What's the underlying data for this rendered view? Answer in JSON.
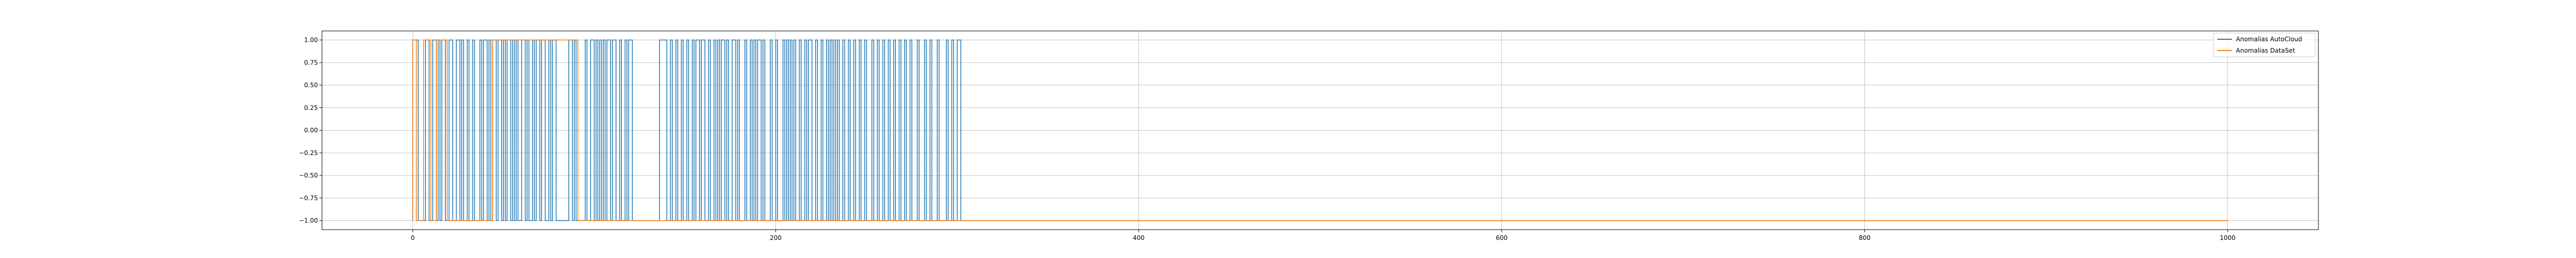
{
  "chart_data": {
    "type": "line",
    "title": "",
    "xlabel": "",
    "ylabel": "",
    "xlim": [
      -50,
      1050
    ],
    "ylim": [
      -1.1,
      1.1
    ],
    "grid": true,
    "legend_position": "top-right",
    "x_ticks": [
      0,
      200,
      400,
      600,
      800,
      1000
    ],
    "x_tick_labels": [
      "0",
      "200",
      "400",
      "600",
      "800",
      "1000"
    ],
    "y_ticks": [
      1.0,
      0.75,
      0.5,
      0.25,
      0.0,
      -0.25,
      -0.5,
      -0.75,
      -1.0
    ],
    "y_tick_labels": [
      "1.00",
      "0.75",
      "0.50",
      "0.25",
      "0.00",
      "−0.25",
      "−0.50",
      "−0.75",
      "−1.00"
    ],
    "series": [
      {
        "name": "Anomalias AutoCloud",
        "color": "#1f77b4",
        "step_ranges_high": [
          [
            0,
            3
          ],
          [
            7,
            9
          ],
          [
            11,
            13
          ],
          [
            14,
            15
          ],
          [
            16,
            18
          ],
          [
            20,
            22
          ],
          [
            24,
            26
          ],
          [
            27,
            28
          ],
          [
            30,
            31
          ],
          [
            33,
            34
          ],
          [
            37,
            38
          ],
          [
            39,
            41
          ],
          [
            42,
            43
          ],
          [
            44,
            46
          ],
          [
            47,
            49
          ],
          [
            50,
            51
          ],
          [
            52,
            54
          ],
          [
            55,
            56
          ],
          [
            57,
            58
          ],
          [
            60,
            62
          ],
          [
            63,
            64
          ],
          [
            66,
            67
          ],
          [
            68,
            70
          ],
          [
            71,
            73
          ],
          [
            75,
            76
          ],
          [
            77,
            79
          ],
          [
            86,
            88
          ],
          [
            89,
            90
          ],
          [
            95,
            96
          ],
          [
            98,
            100
          ],
          [
            101,
            102
          ],
          [
            103,
            104
          ],
          [
            105,
            106
          ],
          [
            107,
            109
          ],
          [
            110,
            112
          ],
          [
            114,
            115
          ],
          [
            117,
            118
          ],
          [
            119,
            121
          ],
          [
            136,
            140
          ],
          [
            142,
            143
          ],
          [
            145,
            146
          ],
          [
            148,
            149
          ],
          [
            151,
            152
          ],
          [
            154,
            155
          ],
          [
            156,
            158
          ],
          [
            159,
            161
          ],
          [
            163,
            164
          ],
          [
            166,
            167
          ],
          [
            168,
            169
          ],
          [
            170,
            172
          ],
          [
            173,
            174
          ],
          [
            176,
            178
          ],
          [
            179,
            180
          ],
          [
            183,
            184
          ],
          [
            186,
            187
          ],
          [
            188,
            189
          ],
          [
            190,
            192
          ],
          [
            193,
            194
          ],
          [
            197,
            198
          ],
          [
            200,
            201
          ],
          [
            204,
            205
          ],
          [
            206,
            207
          ],
          [
            208,
            209
          ],
          [
            210,
            211
          ],
          [
            213,
            214
          ],
          [
            216,
            217
          ],
          [
            218,
            220
          ],
          [
            222,
            223
          ],
          [
            225,
            226
          ],
          [
            228,
            229
          ],
          [
            230,
            231
          ],
          [
            232,
            233
          ],
          [
            234,
            235
          ],
          [
            237,
            238
          ],
          [
            240,
            241
          ],
          [
            243,
            244
          ],
          [
            246,
            247
          ],
          [
            249,
            250
          ],
          [
            253,
            254
          ],
          [
            256,
            257
          ],
          [
            259,
            260
          ],
          [
            262,
            263
          ],
          [
            265,
            266
          ],
          [
            268,
            269
          ],
          [
            271,
            272
          ],
          [
            274,
            275
          ],
          [
            278,
            279
          ],
          [
            282,
            283
          ],
          [
            285,
            286
          ],
          [
            289,
            290
          ],
          [
            294,
            295
          ],
          [
            297,
            298
          ],
          [
            300,
            302
          ]
        ],
        "x_end": 1000
      },
      {
        "name": "Anomalias DataSet",
        "color": "#ff7f0e",
        "step_ranges_high": [
          [
            0,
            2
          ],
          [
            6,
            10
          ],
          [
            13,
            19
          ],
          [
            44,
            91
          ]
        ],
        "x_end": 1000
      }
    ]
  }
}
